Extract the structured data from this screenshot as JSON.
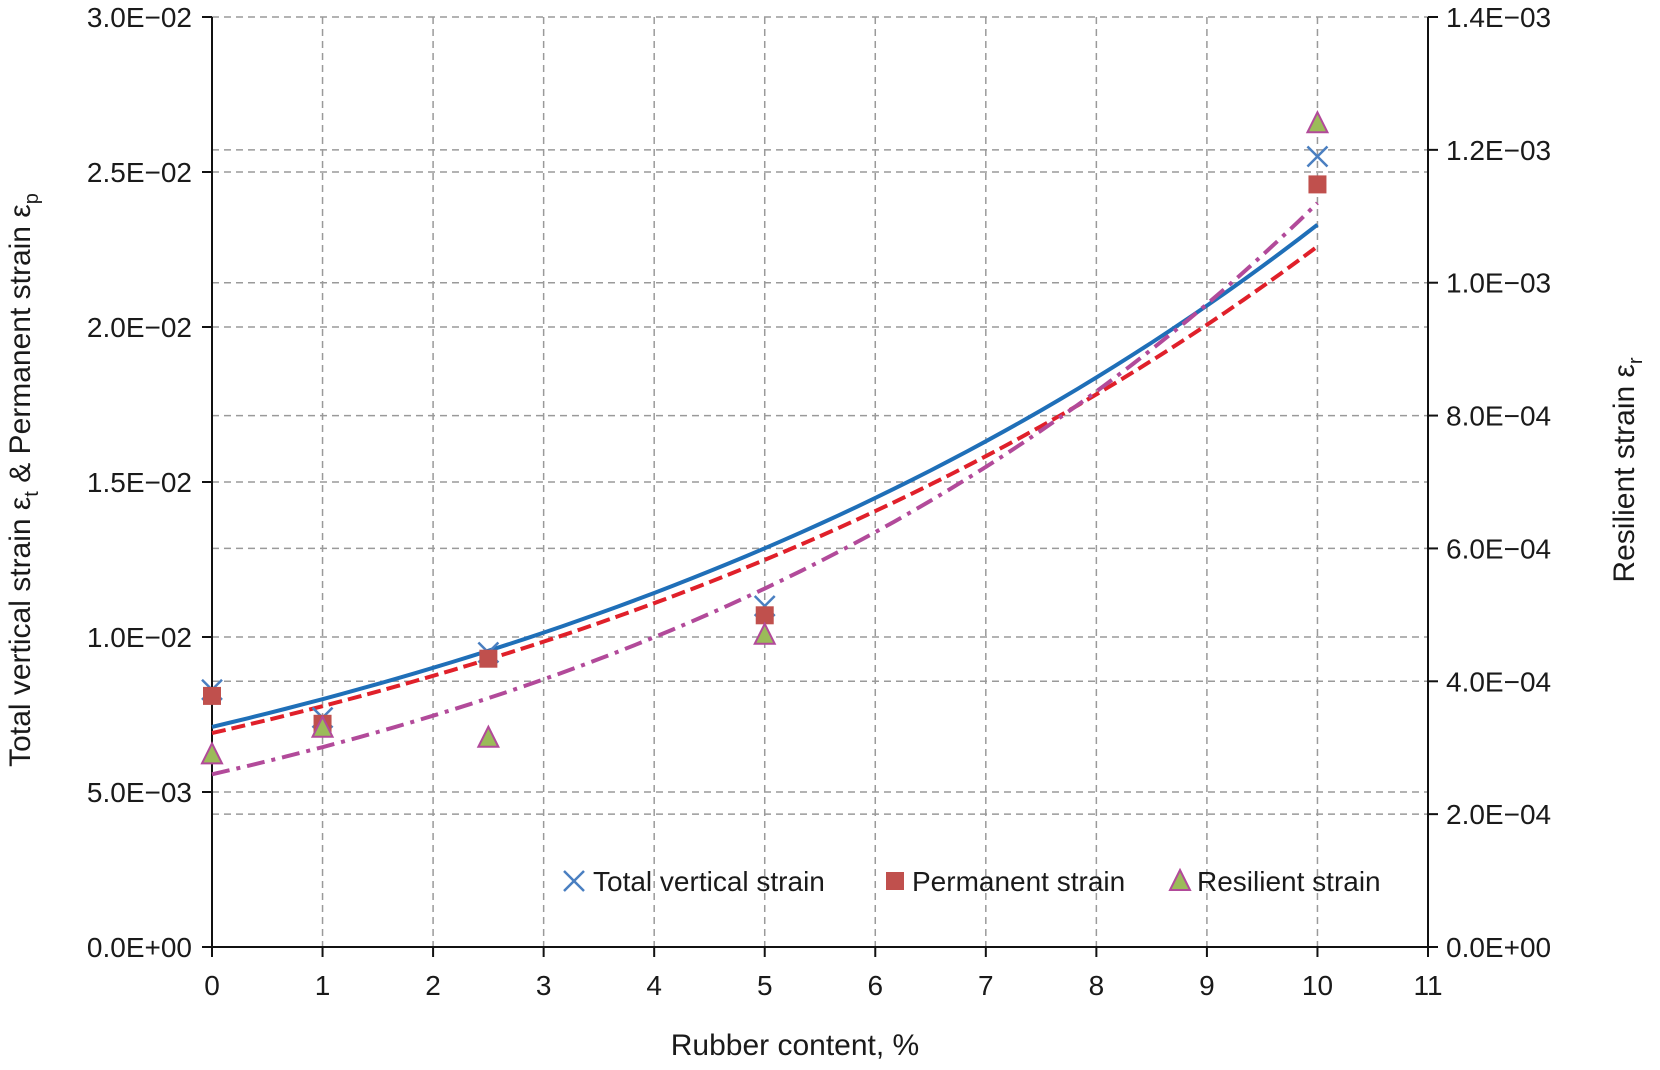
{
  "chart_data": {
    "type": "scatter",
    "x_axis": {
      "label": "Rubber content, %",
      "range": [
        0,
        11
      ],
      "ticks": [
        "0",
        "1",
        "2",
        "3",
        "4",
        "5",
        "6",
        "7",
        "8",
        "9",
        "10",
        "11"
      ]
    },
    "y_axis_left": {
      "label_parts": [
        "Total vertical strain ε",
        "t",
        " & Permanent strain ε",
        "p"
      ],
      "range": [
        0,
        0.03
      ],
      "ticks": [
        "0.0E+00",
        "5.0E−03",
        "1.0E−02",
        "1.5E−02",
        "2.0E−02",
        "2.5E−02",
        "3.0E−02"
      ]
    },
    "y_axis_right": {
      "label_parts": [
        "Resilient strain ε",
        "r"
      ],
      "range": [
        0,
        0.0014
      ],
      "ticks": [
        "0.0E+00",
        "2.0E−04",
        "4.0E−04",
        "6.0E−04",
        "8.0E−04",
        "1.0E−03",
        "1.2E−03",
        "1.4E−03"
      ]
    },
    "grid": true,
    "legend_position": "bottom-right",
    "series": [
      {
        "name": "Total vertical strain",
        "axis": "left",
        "marker": "x",
        "color": "#4a7fc1",
        "points": [
          [
            0,
            0.0083
          ],
          [
            1,
            0.0074
          ],
          [
            2.5,
            0.0095
          ],
          [
            5,
            0.011
          ],
          [
            10,
            0.0255
          ]
        ],
        "trendline": {
          "style": "solid",
          "color": "#1f6fb8",
          "x": [
            0,
            10
          ],
          "y": [
            0.0071,
            0.0233
          ]
        }
      },
      {
        "name": "Permanent strain",
        "axis": "left",
        "marker": "square",
        "color": "#c0504d",
        "points": [
          [
            0,
            0.0081
          ],
          [
            1,
            0.0072
          ],
          [
            2.5,
            0.0093
          ],
          [
            5,
            0.0107
          ],
          [
            10,
            0.0246
          ]
        ],
        "trendline": {
          "style": "dashed",
          "color": "#e0202a",
          "x": [
            0,
            10
          ],
          "y": [
            0.0069,
            0.0226
          ]
        }
      },
      {
        "name": "Resilient strain",
        "axis": "right",
        "marker": "triangle",
        "color": "#9bbb59",
        "edge_color": "#b24a9a",
        "points": [
          [
            0,
            0.00029
          ],
          [
            1,
            0.00033
          ],
          [
            2.5,
            0.000315
          ],
          [
            5,
            0.00047
          ],
          [
            10,
            0.00124
          ]
        ],
        "trendline": {
          "style": "dashdot",
          "color": "#b24a9a",
          "x": [
            0,
            10
          ],
          "y": [
            0.00026,
            0.00112
          ]
        }
      }
    ]
  }
}
